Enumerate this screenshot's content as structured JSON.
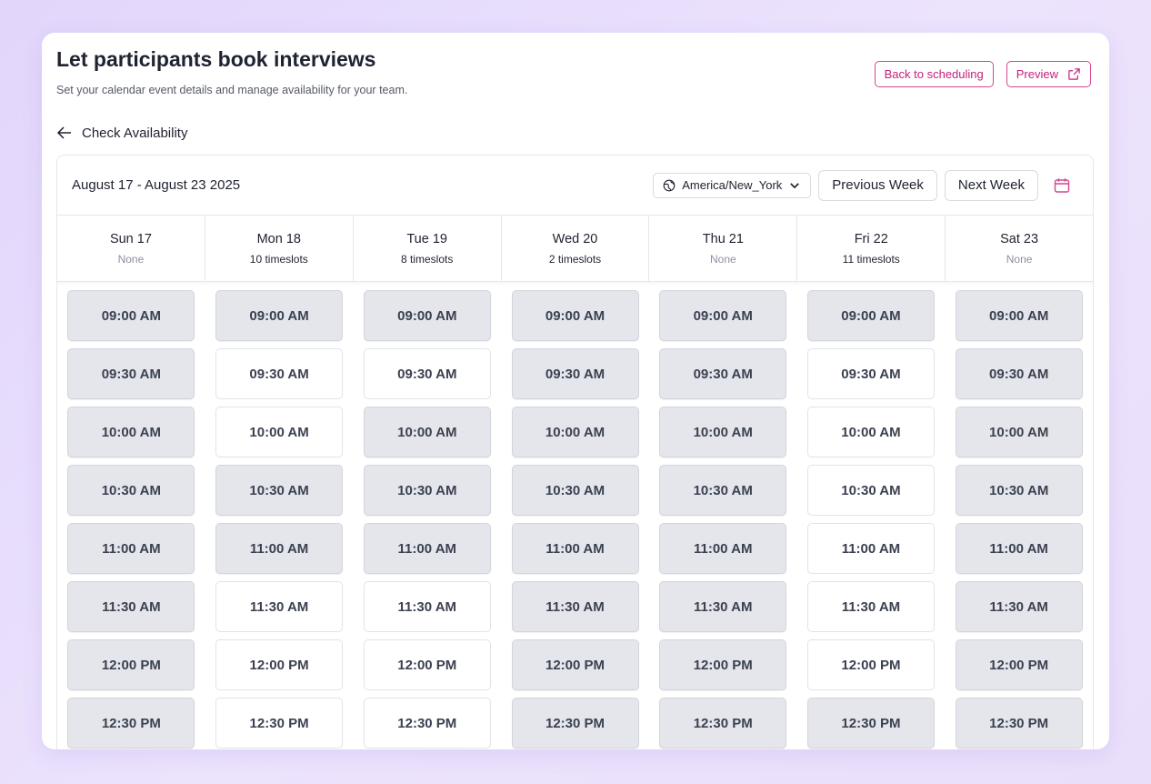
{
  "header": {
    "title": "Let participants book interviews",
    "subtitle": "Set your calendar event details and manage availability for your team.",
    "back_to_scheduling": "Back to scheduling",
    "preview": "Preview"
  },
  "back": {
    "label": "Check Availability"
  },
  "calendar": {
    "range": "August 17 - August 23 2025",
    "timezone": "America/New_York",
    "previous_week": "Previous Week",
    "next_week": "Next Week"
  },
  "colors": {
    "accent": "#c4217a",
    "unavailable": "#e4e6eb",
    "available": "#ffffff"
  },
  "days": [
    {
      "name": "Sun 17",
      "count": "None",
      "slots": [
        {
          "time": "09:00 AM",
          "available": false
        },
        {
          "time": "09:30 AM",
          "available": false
        },
        {
          "time": "10:00 AM",
          "available": false
        },
        {
          "time": "10:30 AM",
          "available": false
        },
        {
          "time": "11:00 AM",
          "available": false
        },
        {
          "time": "11:30 AM",
          "available": false
        },
        {
          "time": "12:00 PM",
          "available": false
        },
        {
          "time": "12:30 PM",
          "available": false
        }
      ]
    },
    {
      "name": "Mon 18",
      "count": "10 timeslots",
      "slots": [
        {
          "time": "09:00 AM",
          "available": false
        },
        {
          "time": "09:30 AM",
          "available": true
        },
        {
          "time": "10:00 AM",
          "available": true
        },
        {
          "time": "10:30 AM",
          "available": false
        },
        {
          "time": "11:00 AM",
          "available": false
        },
        {
          "time": "11:30 AM",
          "available": true
        },
        {
          "time": "12:00 PM",
          "available": true
        },
        {
          "time": "12:30 PM",
          "available": true
        }
      ]
    },
    {
      "name": "Tue 19",
      "count": "8 timeslots",
      "slots": [
        {
          "time": "09:00 AM",
          "available": false
        },
        {
          "time": "09:30 AM",
          "available": true
        },
        {
          "time": "10:00 AM",
          "available": false
        },
        {
          "time": "10:30 AM",
          "available": false
        },
        {
          "time": "11:00 AM",
          "available": false
        },
        {
          "time": "11:30 AM",
          "available": true
        },
        {
          "time": "12:00 PM",
          "available": true
        },
        {
          "time": "12:30 PM",
          "available": true
        }
      ]
    },
    {
      "name": "Wed 20",
      "count": "2 timeslots",
      "slots": [
        {
          "time": "09:00 AM",
          "available": false
        },
        {
          "time": "09:30 AM",
          "available": false
        },
        {
          "time": "10:00 AM",
          "available": false
        },
        {
          "time": "10:30 AM",
          "available": false
        },
        {
          "time": "11:00 AM",
          "available": false
        },
        {
          "time": "11:30 AM",
          "available": false
        },
        {
          "time": "12:00 PM",
          "available": false
        },
        {
          "time": "12:30 PM",
          "available": false
        }
      ]
    },
    {
      "name": "Thu 21",
      "count": "None",
      "slots": [
        {
          "time": "09:00 AM",
          "available": false
        },
        {
          "time": "09:30 AM",
          "available": false
        },
        {
          "time": "10:00 AM",
          "available": false
        },
        {
          "time": "10:30 AM",
          "available": false
        },
        {
          "time": "11:00 AM",
          "available": false
        },
        {
          "time": "11:30 AM",
          "available": false
        },
        {
          "time": "12:00 PM",
          "available": false
        },
        {
          "time": "12:30 PM",
          "available": false
        }
      ]
    },
    {
      "name": "Fri 22",
      "count": "11 timeslots",
      "slots": [
        {
          "time": "09:00 AM",
          "available": false
        },
        {
          "time": "09:30 AM",
          "available": true
        },
        {
          "time": "10:00 AM",
          "available": true
        },
        {
          "time": "10:30 AM",
          "available": true
        },
        {
          "time": "11:00 AM",
          "available": true
        },
        {
          "time": "11:30 AM",
          "available": true
        },
        {
          "time": "12:00 PM",
          "available": true
        },
        {
          "time": "12:30 PM",
          "available": false
        }
      ]
    },
    {
      "name": "Sat 23",
      "count": "None",
      "slots": [
        {
          "time": "09:00 AM",
          "available": false
        },
        {
          "time": "09:30 AM",
          "available": false
        },
        {
          "time": "10:00 AM",
          "available": false
        },
        {
          "time": "10:30 AM",
          "available": false
        },
        {
          "time": "11:00 AM",
          "available": false
        },
        {
          "time": "11:30 AM",
          "available": false
        },
        {
          "time": "12:00 PM",
          "available": false
        },
        {
          "time": "12:30 PM",
          "available": false
        }
      ]
    }
  ]
}
